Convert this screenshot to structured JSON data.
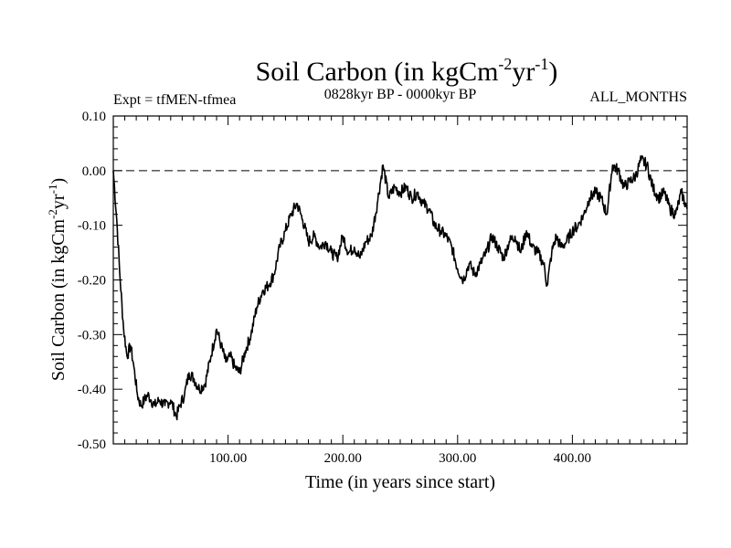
{
  "chart_data": {
    "type": "line",
    "title": {
      "main": "Soil Carbon (in kgCm",
      "sup1": "-2",
      "mid": "yr",
      "sup2": "-1",
      "end": ")"
    },
    "subtitle_left": "Expt = tfMEN-tfmea",
    "subtitle_center": "0828kyr BP - 0000kyr BP",
    "subtitle_right": "ALL_MONTHS",
    "xlabel": "Time (in years since start)",
    "ylabel": {
      "main": "Soil Carbon (in kgCm",
      "sup1": "-2",
      "mid": "yr",
      "sup2": "-1",
      "end": ")"
    },
    "xlim": [
      0,
      500
    ],
    "ylim": [
      -0.5,
      0.1
    ],
    "x_ticks": [
      100,
      200,
      300,
      400
    ],
    "x_tick_labels": [
      "100.00",
      "200.00",
      "300.00",
      "400.00"
    ],
    "y_ticks": [
      0.1,
      0.0,
      -0.1,
      -0.2,
      -0.3,
      -0.4,
      -0.5
    ],
    "y_tick_labels": [
      "0.10",
      "0.00",
      "-0.10",
      "-0.20",
      "-0.30",
      "-0.40",
      "-0.50"
    ],
    "reference_line": {
      "y": 0.0,
      "style": "dashed"
    },
    "grid": false,
    "series": [
      {
        "name": "Soil Carbon",
        "color": "#000000",
        "x": [
          0,
          3,
          6,
          9,
          12,
          15,
          18,
          21,
          24,
          27,
          30,
          33,
          36,
          40,
          45,
          50,
          55,
          58,
          62,
          66,
          70,
          75,
          80,
          85,
          90,
          94,
          98,
          102,
          106,
          110,
          115,
          120,
          125,
          130,
          135,
          140,
          145,
          150,
          155,
          160,
          165,
          170,
          175,
          180,
          185,
          190,
          195,
          200,
          205,
          210,
          215,
          220,
          225,
          230,
          235,
          240,
          245,
          250,
          255,
          260,
          265,
          270,
          275,
          280,
          285,
          290,
          295,
          300,
          305,
          310,
          315,
          320,
          325,
          330,
          335,
          340,
          345,
          350,
          355,
          360,
          365,
          370,
          375,
          378,
          382,
          386,
          390,
          395,
          400,
          405,
          410,
          415,
          420,
          425,
          430,
          435,
          440,
          445,
          450,
          455,
          460,
          465,
          470,
          475,
          480,
          485,
          490,
          495,
          500
        ],
        "y": [
          0.0,
          -0.09,
          -0.2,
          -0.29,
          -0.34,
          -0.32,
          -0.36,
          -0.41,
          -0.43,
          -0.42,
          -0.41,
          -0.42,
          -0.43,
          -0.42,
          -0.43,
          -0.42,
          -0.45,
          -0.43,
          -0.41,
          -0.37,
          -0.38,
          -0.4,
          -0.39,
          -0.34,
          -0.29,
          -0.32,
          -0.35,
          -0.34,
          -0.36,
          -0.37,
          -0.33,
          -0.3,
          -0.25,
          -0.22,
          -0.21,
          -0.19,
          -0.14,
          -0.11,
          -0.08,
          -0.06,
          -0.09,
          -0.13,
          -0.12,
          -0.14,
          -0.13,
          -0.15,
          -0.16,
          -0.12,
          -0.15,
          -0.14,
          -0.16,
          -0.13,
          -0.12,
          -0.06,
          0.01,
          -0.05,
          -0.03,
          -0.04,
          -0.03,
          -0.05,
          -0.04,
          -0.06,
          -0.07,
          -0.1,
          -0.11,
          -0.12,
          -0.14,
          -0.18,
          -0.2,
          -0.17,
          -0.19,
          -0.17,
          -0.15,
          -0.12,
          -0.14,
          -0.16,
          -0.13,
          -0.12,
          -0.15,
          -0.11,
          -0.14,
          -0.15,
          -0.17,
          -0.21,
          -0.15,
          -0.12,
          -0.14,
          -0.13,
          -0.11,
          -0.1,
          -0.08,
          -0.05,
          -0.04,
          -0.05,
          -0.08,
          0.01,
          0.0,
          -0.03,
          -0.02,
          -0.01,
          0.02,
          0.01,
          -0.03,
          -0.05,
          -0.04,
          -0.07,
          -0.08,
          -0.04,
          -0.07
        ]
      }
    ]
  }
}
